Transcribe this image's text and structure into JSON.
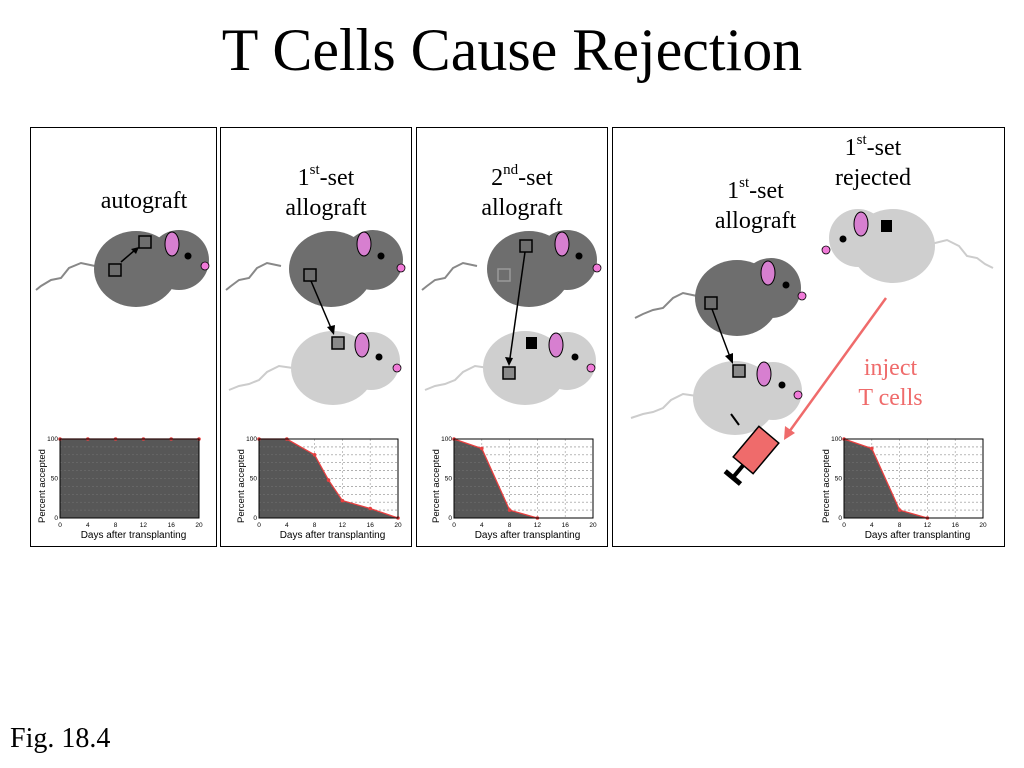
{
  "title": "T Cells Cause Rejection",
  "caption": "Fig. 18.4",
  "colors": {
    "dark_mouse": "#6e6e6e",
    "light_mouse": "#cfcfcf",
    "ear": "#d77fd0",
    "nose": "#f07ad8",
    "inject": "#ef6b6b",
    "curve": "#e84040"
  },
  "panels": [
    {
      "label_lines": [
        "autograft"
      ]
    },
    {
      "label_lines": [
        {
          "num": "1",
          "sup": "st",
          "rest": "-set"
        },
        "allograft"
      ]
    },
    {
      "label_lines": [
        {
          "num": "2",
          "sup": "nd",
          "rest": "-set"
        },
        "allograft"
      ]
    },
    {
      "label_lines": [
        {
          "num": "1",
          "sup": "st",
          "rest": "-set"
        },
        "allograft"
      ],
      "rejected_lines": [
        {
          "num": "1",
          "sup": "st",
          "rest": "-set"
        },
        "rejected"
      ],
      "inject_lines": [
        "inject",
        "T cells"
      ]
    }
  ],
  "chart_axis": {
    "xlabel": "Days after transplanting",
    "ylabel": "Percent accepted",
    "xticks": [
      "0",
      "4",
      "8",
      "12",
      "16",
      "20"
    ],
    "yticks": [
      "0",
      "50",
      "100"
    ],
    "xlim": [
      0,
      20
    ],
    "ylim": [
      0,
      100
    ]
  },
  "chart_data": [
    {
      "type": "area",
      "x": [
        0,
        4,
        8,
        12,
        16,
        20
      ],
      "y": [
        100,
        100,
        100,
        100,
        100,
        100
      ]
    },
    {
      "type": "area",
      "x": [
        0,
        4,
        8,
        10,
        12,
        16,
        20
      ],
      "y": [
        100,
        100,
        80,
        48,
        22,
        12,
        0
      ]
    },
    {
      "type": "area",
      "x": [
        0,
        4,
        8,
        12
      ],
      "y": [
        100,
        88,
        10,
        0
      ]
    },
    {
      "type": "area",
      "x": [
        0,
        4,
        8,
        12
      ],
      "y": [
        100,
        88,
        10,
        0
      ]
    }
  ]
}
